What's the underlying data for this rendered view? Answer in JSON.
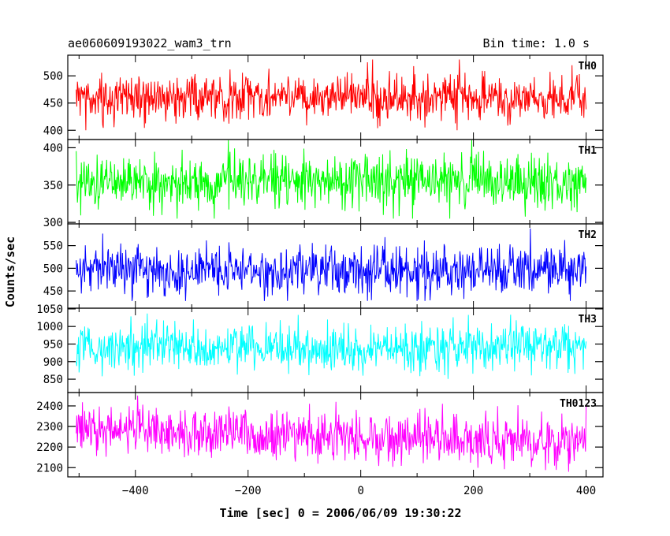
{
  "header": {
    "obs_id": "ae060609193022_wam3_trn",
    "bin_time": "Bin time: 1.0 s"
  },
  "chart_data": {
    "type": "line",
    "title": "ae060609193022_wam3_trn",
    "subtitle": "Bin time: 1.0 s",
    "xlabel": "Time [sec] 0 = 2006/06/09 19:30:22",
    "ylabel": "Counts/sec",
    "xlim": [
      -520,
      430
    ],
    "x_range_data": [
      -505,
      400
    ],
    "x_ticks": [
      -400,
      -200,
      0,
      200,
      400
    ],
    "x_tick_labels": [
      "−400",
      "−200",
      "0",
      "200",
      "400"
    ],
    "grid": false,
    "panels": [
      {
        "name": "TH0",
        "color": "#ff0000",
        "ylim": [
          383,
          538
        ],
        "yticks": [
          400,
          450,
          500
        ],
        "ytick_labels": [
          "400",
          "450",
          "500"
        ],
        "mean": 460,
        "low": 400,
        "high": 530
      },
      {
        "name": "TH1",
        "color": "#00ff00",
        "ylim": [
          298,
          411
        ],
        "yticks": [
          300,
          350,
          400
        ],
        "ytick_labels": [
          "300",
          "350",
          "400"
        ],
        "mean": 355,
        "low": 305,
        "high": 410
      },
      {
        "name": "TH2",
        "color": "#0000ff",
        "ylim": [
          412,
          598
        ],
        "yticks": [
          450,
          500,
          550
        ],
        "ytick_labels": [
          "450",
          "500",
          "550"
        ],
        "mean": 495,
        "low": 428,
        "high": 590
      },
      {
        "name": "TH3",
        "color": "#00ffff",
        "ylim": [
          812,
          1052
        ],
        "yticks": [
          850,
          900,
          950,
          1000,
          1050
        ],
        "ytick_labels": [
          "850",
          "900",
          "950",
          "1000",
          "1050"
        ],
        "mean": 940,
        "low": 850,
        "high": 1045
      },
      {
        "name": "TH0123",
        "color": "#ff00ff",
        "ylim": [
          2055,
          2465
        ],
        "yticks": [
          2100,
          2200,
          2300,
          2400
        ],
        "ytick_labels": [
          "2100",
          "2200",
          "2300",
          "2400"
        ],
        "mean": 2245,
        "low": 2080,
        "high": 2450,
        "trend_start": 2285,
        "trend_end": 2220
      }
    ]
  }
}
